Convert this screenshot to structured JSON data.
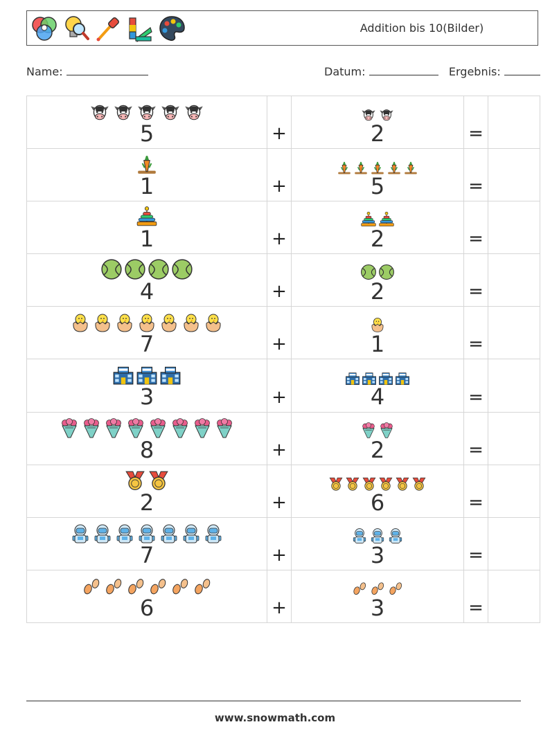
{
  "header": {
    "title": "Addition bis 10(Bilder)",
    "logos": [
      "color-wheel-icon",
      "magnifier-bulb-icon",
      "eyedropper-icon",
      "color-swatch-icon",
      "paint-palette-icon"
    ]
  },
  "fields": {
    "name_label": "Name:",
    "date_label": "Datum:",
    "result_label": "Ergebnis:"
  },
  "operators": {
    "plus": "+",
    "equals": "="
  },
  "problems": [
    {
      "a": 5,
      "b": 2,
      "icon": "cow-icon"
    },
    {
      "a": 1,
      "b": 5,
      "icon": "carrot-icon"
    },
    {
      "a": 1,
      "b": 2,
      "icon": "stacking-toy-icon"
    },
    {
      "a": 4,
      "b": 2,
      "icon": "tennis-ball-icon"
    },
    {
      "a": 7,
      "b": 1,
      "icon": "hatching-chick-icon"
    },
    {
      "a": 3,
      "b": 4,
      "icon": "building-icon"
    },
    {
      "a": 8,
      "b": 2,
      "icon": "flower-bouquet-icon"
    },
    {
      "a": 2,
      "b": 6,
      "icon": "medal-icon"
    },
    {
      "a": 7,
      "b": 3,
      "icon": "astronaut-icon"
    },
    {
      "a": 6,
      "b": 3,
      "icon": "footprints-icon"
    }
  ],
  "footer": {
    "url": "www.snowmath.com"
  }
}
